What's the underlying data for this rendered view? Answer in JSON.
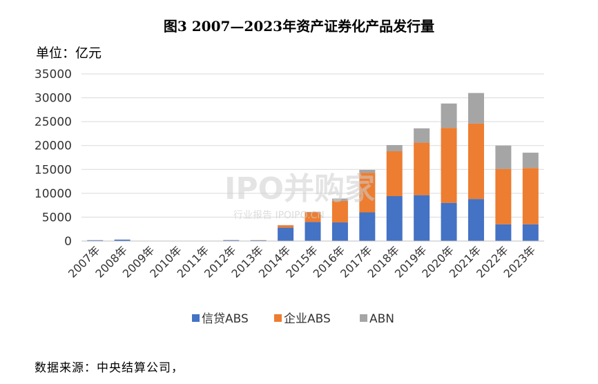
{
  "title": "图3 2007—2023年资产证券化产品发行量",
  "unit_label": "单位：亿元",
  "source": "数据来源：中央结算公司，",
  "watermark": {
    "main": "IPO并购家",
    "sub": "行业报告 IPOIPO.CN"
  },
  "colors": {
    "信贷ABS": "#4472C4",
    "企业ABS": "#ED7D31",
    "ABN": "#A5A5A5",
    "grid": "#d9d9d9"
  },
  "chart_data": {
    "type": "bar",
    "stacked": true,
    "categories": [
      "2007年",
      "2008年",
      "2009年",
      "2010年",
      "2011年",
      "2012年",
      "2013年",
      "2014年",
      "2015年",
      "2016年",
      "2017年",
      "2018年",
      "2019年",
      "2020年",
      "2021年",
      "2022年",
      "2023年"
    ],
    "series": [
      {
        "name": "信贷ABS",
        "values": [
          180,
          300,
          0,
          0,
          10,
          190,
          160,
          2800,
          4000,
          3900,
          6000,
          9400,
          9600,
          8000,
          8800,
          3500,
          3500
        ]
      },
      {
        "name": "企业ABS",
        "values": [
          0,
          0,
          0,
          0,
          20,
          10,
          30,
          500,
          2000,
          4500,
          8300,
          9400,
          11000,
          15700,
          15800,
          11600,
          11800
        ]
      },
      {
        "name": "ABN",
        "values": [
          0,
          0,
          0,
          0,
          0,
          10,
          0,
          50,
          100,
          500,
          600,
          1300,
          3000,
          5100,
          6400,
          4900,
          3200
        ]
      }
    ],
    "ylim": [
      0,
      35000
    ],
    "yticks": [
      0,
      5000,
      10000,
      15000,
      20000,
      25000,
      30000,
      35000
    ],
    "grid": true,
    "legend_position": "bottom"
  }
}
